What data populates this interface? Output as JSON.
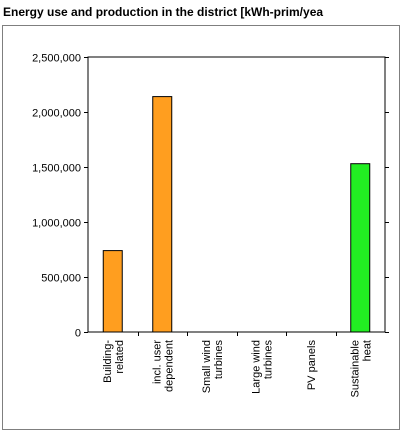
{
  "chart_data": {
    "type": "bar",
    "title": "Energy use and production in the district [kWh-prim/yea",
    "categories": [
      [
        "Building-",
        "related"
      ],
      [
        "incl. user",
        "dependent"
      ],
      [
        "Small wind",
        "turbines"
      ],
      [
        "Large wind",
        "turbines"
      ],
      [
        "PV panels"
      ],
      [
        "Sustainable",
        "heat"
      ]
    ],
    "values": [
      740000,
      2140000,
      0,
      0,
      0,
      1530000
    ],
    "bar_colors": [
      "#ff9e1f",
      "#ff9e1f",
      "#ff9e1f",
      "#ff9e1f",
      "#ff9e1f",
      "#22ee22"
    ],
    "ylim": [
      0,
      2500000
    ],
    "yticks": [
      0,
      500000,
      1000000,
      1500000,
      2000000,
      2500000
    ],
    "ytick_labels": [
      "0",
      "500,000",
      "1,000,000",
      "1,500,000",
      "2,000,000",
      "2,500,000"
    ],
    "grid": false,
    "legend": "none",
    "xlabel": "",
    "ylabel": ""
  }
}
